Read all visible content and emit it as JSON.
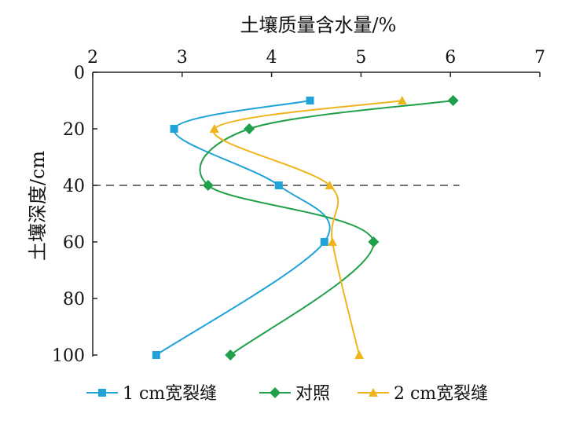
{
  "chart_data": {
    "type": "line",
    "title": "土壤质量含水量/%",
    "xlabel": "土壤质量含水量/%",
    "ylabel": "土壤深度/cm",
    "xlim": [
      2,
      7
    ],
    "ylim": [
      0,
      100
    ],
    "y_inverted": true,
    "x_axis_position": "top",
    "xticks": [
      "2",
      "3",
      "4",
      "5",
      "6",
      "7"
    ],
    "yticks": [
      "0",
      "20",
      "40",
      "60",
      "80",
      "100"
    ],
    "reference_line": {
      "depth": 40,
      "style": "dashed"
    },
    "legend_position": "bottom",
    "series": [
      {
        "name": "1 cm宽裂缝",
        "color": "#1fa3d8",
        "marker": "square",
        "points": [
          [
            4.43,
            10
          ],
          [
            2.91,
            20
          ],
          [
            4.08,
            40
          ],
          [
            4.59,
            60
          ],
          [
            2.71,
            100
          ]
        ]
      },
      {
        "name": "对照",
        "color": "#20a04a",
        "marker": "diamond",
        "points": [
          [
            6.03,
            10
          ],
          [
            3.75,
            20
          ],
          [
            3.29,
            40
          ],
          [
            5.14,
            60
          ],
          [
            3.54,
            100
          ]
        ]
      },
      {
        "name": "2 cm宽裂缝",
        "color": "#f0b41c",
        "marker": "triangle",
        "points": [
          [
            5.46,
            10
          ],
          [
            3.36,
            20
          ],
          [
            4.65,
            40
          ],
          [
            4.68,
            60
          ],
          [
            4.98,
            100
          ]
        ]
      }
    ]
  }
}
